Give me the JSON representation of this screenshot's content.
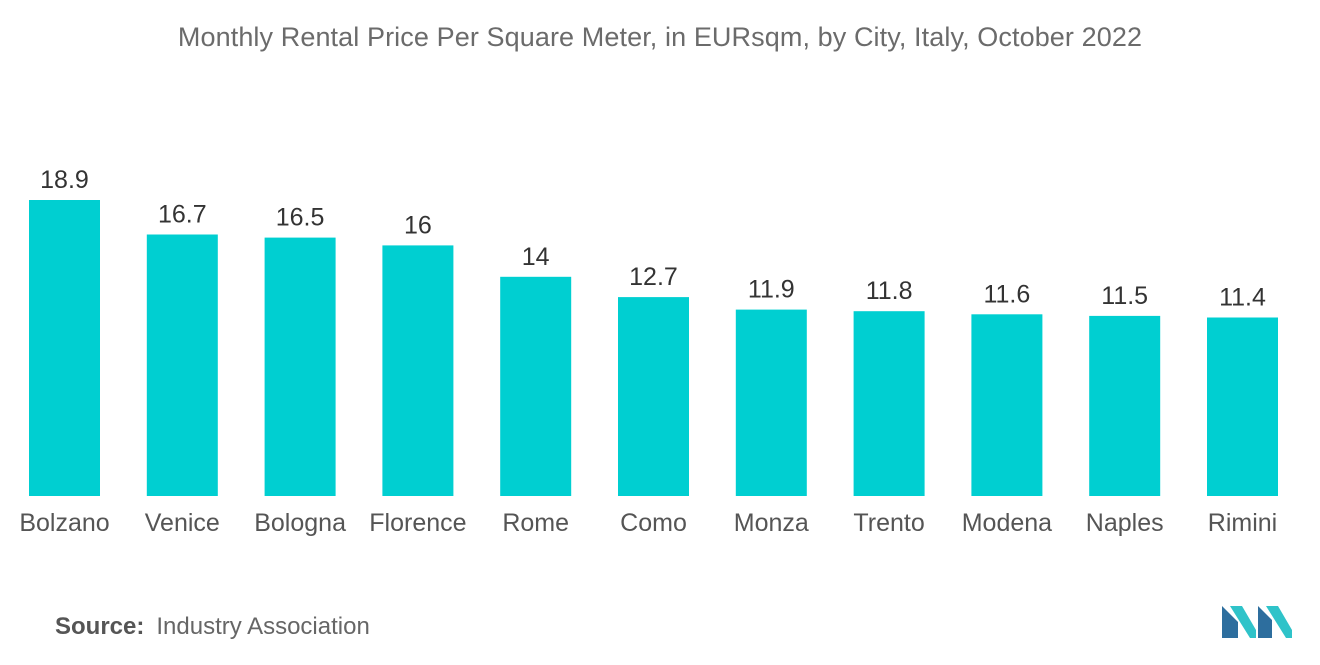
{
  "chart_data": {
    "type": "bar",
    "title": "Monthly Rental Price Per Square Meter, in EURsqm, by City, Italy, October 2022",
    "categories": [
      "Bolzano",
      "Venice",
      "Bologna",
      "Florence",
      "Rome",
      "Como",
      "Monza",
      "Trento",
      "Modena",
      "Naples",
      "Rimini"
    ],
    "values": [
      18.9,
      16.7,
      16.5,
      16,
      14,
      12.7,
      11.9,
      11.8,
      11.6,
      11.5,
      11.4
    ],
    "value_labels": [
      "18.9",
      "16.7",
      "16.5",
      "16",
      "14",
      "12.7",
      "11.9",
      "11.8",
      "11.6",
      "11.5",
      "11.4"
    ],
    "xlabel": "",
    "ylabel": "",
    "ylim": [
      0,
      19
    ],
    "grid": false,
    "bar_color": "#00cfd1"
  },
  "source": {
    "label": "Source:",
    "text": "Industry Association"
  },
  "logo": {
    "name": "mordor-intelligence-logo",
    "colors": [
      "#2d6e9e",
      "#2fc3c9"
    ]
  }
}
